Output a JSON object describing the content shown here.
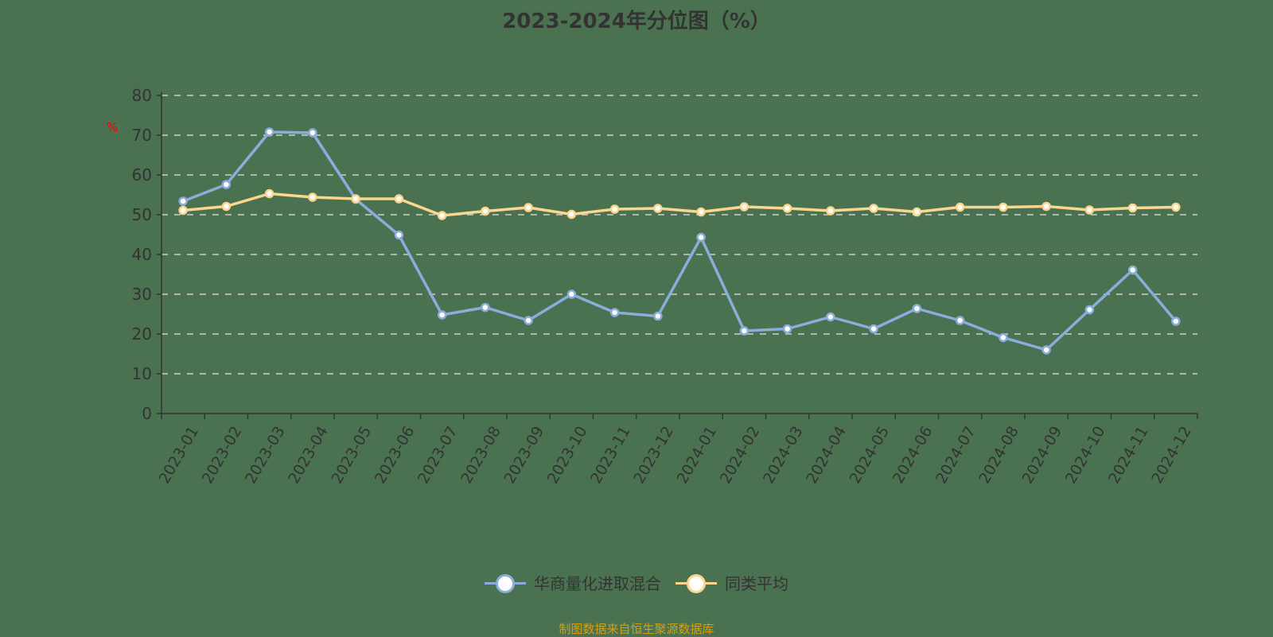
{
  "chart_data": {
    "type": "line",
    "title": "2023-2024年分位图（%）",
    "ylabel": "%",
    "xlabel": "",
    "ylim": [
      0,
      80
    ],
    "yticks": [
      0,
      10,
      20,
      30,
      40,
      50,
      60,
      70,
      80
    ],
    "grid": "horizontal dashed",
    "legend_position": "bottom",
    "categories": [
      "2023-01",
      "2023-02",
      "2023-03",
      "2023-04",
      "2023-05",
      "2023-06",
      "2023-07",
      "2023-08",
      "2023-09",
      "2023-10",
      "2023-11",
      "2023-12",
      "2024-01",
      "2024-02",
      "2024-03",
      "2024-04",
      "2024-05",
      "2024-06",
      "2024-07",
      "2024-08",
      "2024-09",
      "2024-10",
      "2024-11",
      "2024-12"
    ],
    "series": [
      {
        "name": "华商量化进取混合",
        "color": "#8aaddc",
        "values": [
          53.4,
          57.6,
          70.8,
          70.6,
          53.9,
          44.9,
          24.8,
          26.7,
          23.4,
          30.0,
          25.4,
          24.5,
          44.3,
          20.8,
          21.3,
          24.3,
          21.3,
          26.4,
          23.4,
          19.1,
          16.0,
          26.1,
          36.1,
          23.2
        ]
      },
      {
        "name": "同类平均",
        "color": "#fcd68f",
        "values": [
          51.1,
          52.1,
          55.3,
          54.4,
          54.0,
          54.0,
          49.8,
          50.9,
          51.8,
          50.1,
          51.4,
          51.6,
          50.7,
          52.0,
          51.6,
          51.0,
          51.6,
          50.7,
          51.9,
          51.9,
          52.1,
          51.2,
          51.7,
          51.9
        ]
      }
    ]
  },
  "header": {
    "title": "2023-2024年分位图（%）"
  },
  "axis": {
    "y_unit_label": "%"
  },
  "legend": {
    "items": [
      {
        "label": "华商量化进取混合",
        "color": "#8aaddc"
      },
      {
        "label": "同类平均",
        "color": "#fcd68f"
      }
    ]
  },
  "footer": {
    "source": "制图数据来自恒生聚源数据库"
  },
  "colors": {
    "background": "#4a7250",
    "axis": "#333333",
    "grid": "#cccccc",
    "unit_label": "#ff0000",
    "source_text": "#d4a017"
  }
}
